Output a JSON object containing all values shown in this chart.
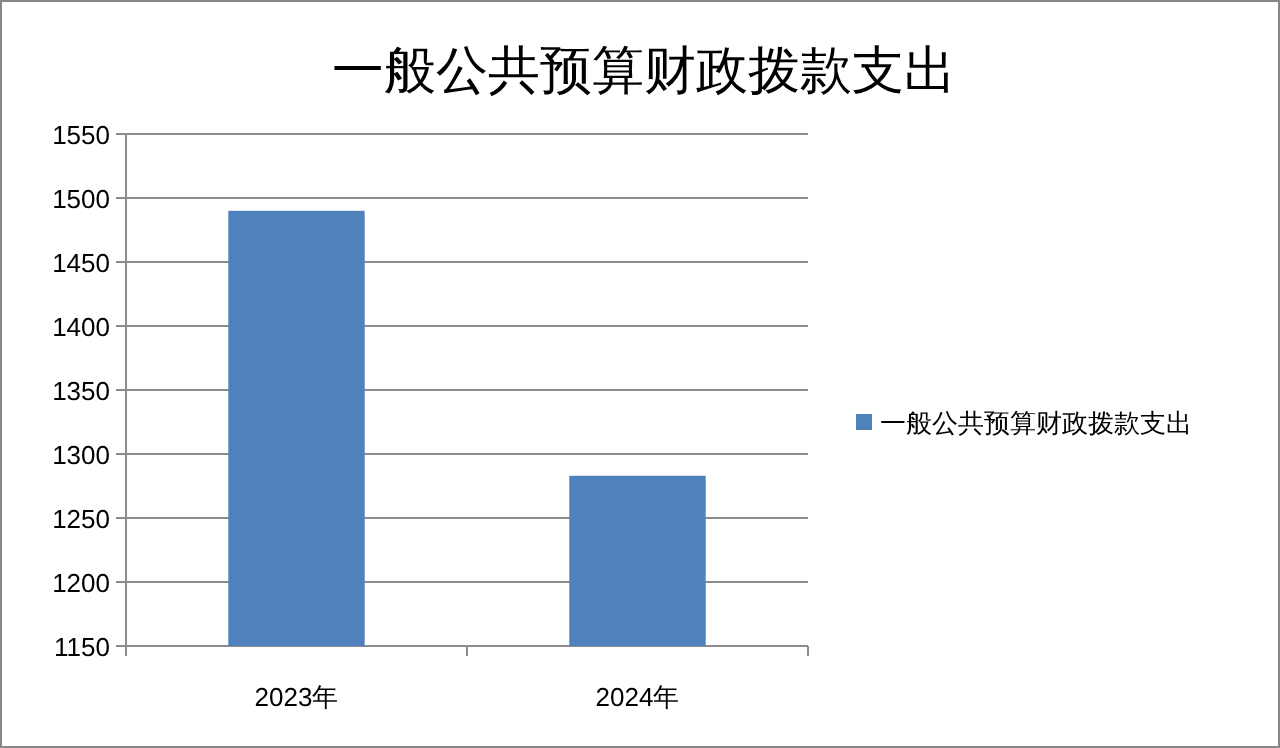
{
  "chart_data": {
    "type": "bar",
    "title": "一般公共预算财政拨款支出",
    "categories": [
      "2023年",
      "2024年"
    ],
    "series": [
      {
        "name": "一般公共预算财政拨款支出",
        "color": "#4f81bd",
        "values": [
          1490,
          1283
        ]
      }
    ],
    "ylim": [
      1150,
      1550
    ],
    "yticks": [
      1150,
      1200,
      1250,
      1300,
      1350,
      1400,
      1450,
      1500,
      1550
    ],
    "grid": "y",
    "legend": "right"
  }
}
